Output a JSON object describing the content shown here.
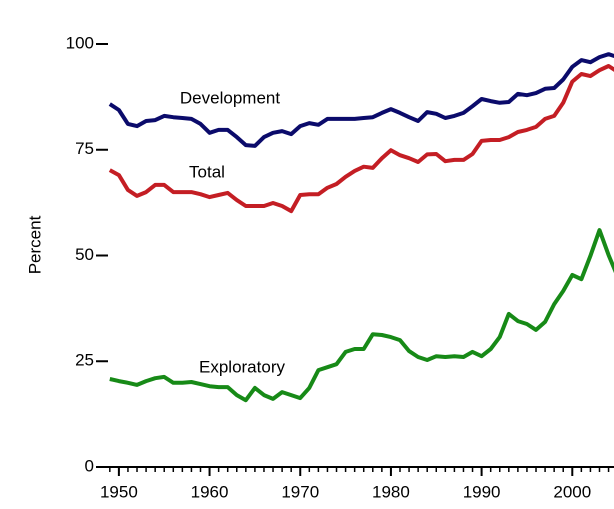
{
  "chart_data": {
    "type": "line",
    "ylabel": "Percent",
    "x": [
      1949,
      1950,
      1951,
      1952,
      1953,
      1954,
      1955,
      1956,
      1957,
      1958,
      1959,
      1960,
      1961,
      1962,
      1963,
      1964,
      1965,
      1966,
      1967,
      1968,
      1969,
      1970,
      1971,
      1972,
      1973,
      1974,
      1975,
      1976,
      1977,
      1978,
      1979,
      1980,
      1981,
      1982,
      1983,
      1984,
      1985,
      1986,
      1987,
      1988,
      1989,
      1990,
      1991,
      1992,
      1993,
      1994,
      1995,
      1996,
      1997,
      1998,
      1999,
      2000,
      2001,
      2002,
      2003,
      2004,
      2005
    ],
    "series": [
      {
        "name": "Development",
        "color": "#0b0b6b",
        "values": [
          85.8,
          84.4,
          81.1,
          80.6,
          81.8,
          82.0,
          83.0,
          82.7,
          82.5,
          82.3,
          81.1,
          79.0,
          79.7,
          79.7,
          78.0,
          76.1,
          75.9,
          78.0,
          79.0,
          79.4,
          78.7,
          80.6,
          81.3,
          80.9,
          82.3,
          82.3,
          82.3,
          82.3,
          82.5,
          82.7,
          83.7,
          84.6,
          83.7,
          82.7,
          81.8,
          83.9,
          83.5,
          82.5,
          83.0,
          83.7,
          85.3,
          87.0,
          86.5,
          86.1,
          86.3,
          88.2,
          87.9,
          88.4,
          89.4,
          89.6,
          91.6,
          94.6,
          96.2,
          95.7,
          96.9,
          97.6,
          96.9
        ]
      },
      {
        "name": "Total",
        "color": "#c41e24",
        "values": [
          70.2,
          69.0,
          65.5,
          64.1,
          65.0,
          66.7,
          66.7,
          65.0,
          65.0,
          65.0,
          64.5,
          63.8,
          64.3,
          64.8,
          63.1,
          61.7,
          61.7,
          61.7,
          62.4,
          61.7,
          60.5,
          64.3,
          64.5,
          64.5,
          66.0,
          66.9,
          68.6,
          70.0,
          71.0,
          70.7,
          73.0,
          74.9,
          73.7,
          73.0,
          72.1,
          73.9,
          74.0,
          72.3,
          72.6,
          72.6,
          74.0,
          77.1,
          77.3,
          77.3,
          78.0,
          79.2,
          79.7,
          80.4,
          82.3,
          83.0,
          86.1,
          91.1,
          92.9,
          92.4,
          93.8,
          94.8,
          93.4
        ]
      },
      {
        "name": "Exploratory",
        "color": "#178a17",
        "values": [
          20.8,
          20.3,
          19.9,
          19.4,
          20.3,
          21.0,
          21.3,
          19.9,
          19.9,
          20.1,
          19.6,
          19.1,
          18.9,
          18.9,
          17.0,
          15.8,
          18.7,
          17.0,
          16.1,
          17.7,
          17.0,
          16.3,
          18.7,
          22.9,
          23.6,
          24.3,
          27.2,
          27.9,
          27.9,
          31.4,
          31.2,
          30.7,
          30.0,
          27.4,
          26.0,
          25.3,
          26.2,
          26.0,
          26.2,
          26.0,
          27.2,
          26.2,
          27.9,
          30.7,
          36.2,
          34.5,
          33.8,
          32.4,
          34.3,
          38.5,
          41.6,
          45.4,
          44.4,
          49.9,
          56.0,
          50.1,
          45.0
        ]
      }
    ],
    "xlim": [
      1948.8,
      2004.6
    ],
    "xticks": [
      1950,
      1960,
      1970,
      1980,
      1990,
      2000
    ],
    "ylim": [
      0,
      100
    ],
    "yticks": [
      0,
      25,
      50,
      75,
      100
    ],
    "grid": false,
    "legend": "inline"
  }
}
